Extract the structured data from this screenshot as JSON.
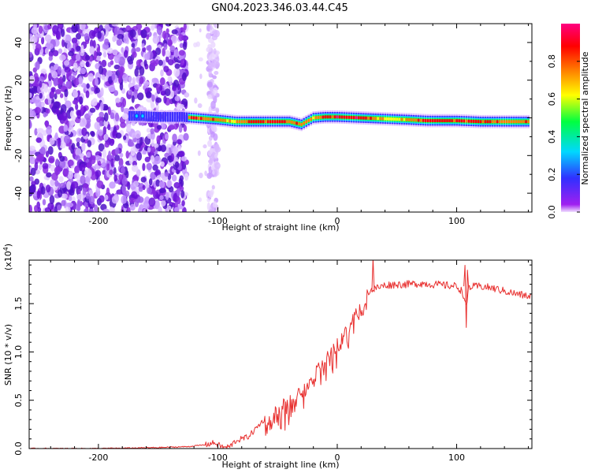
{
  "title": "GN04.2023.346.03.44.C45",
  "chart_data": [
    {
      "type": "heatmap",
      "xlabel": "Height of straight line (km)",
      "ylabel": "Frequency (Hz)",
      "xlim": [
        -258,
        163
      ],
      "ylim": [
        -50,
        50
      ],
      "xticks": [
        -200,
        -100,
        0,
        100
      ],
      "yticks": [
        -40,
        -20,
        0,
        20,
        40
      ],
      "colorbar": {
        "label": "Normalized spectral amplitude",
        "range": [
          0.0,
          1.0
        ],
        "ticks": [
          0.0,
          0.2,
          0.4,
          0.6,
          0.8
        ],
        "colors": [
          "#a020f0",
          "#3030ff",
          "#00d8ff",
          "#00ff40",
          "#ffff00",
          "#ff8000",
          "#ff0000",
          "#ff0080"
        ]
      },
      "ridge": [
        {
          "x": -175,
          "freq": 1.0,
          "amp": 0.15
        },
        {
          "x": -165,
          "freq": 1.0,
          "amp": 0.25
        },
        {
          "x": -150,
          "freq": 0.5,
          "amp": 0.2
        },
        {
          "x": -130,
          "freq": 0.5,
          "amp": 0.4
        },
        {
          "x": -120,
          "freq": 0.0,
          "amp": 0.85
        },
        {
          "x": -100,
          "freq": -1.0,
          "amp": 0.7
        },
        {
          "x": -85,
          "freq": -2.0,
          "amp": 0.7
        },
        {
          "x": -70,
          "freq": -2.0,
          "amp": 0.8
        },
        {
          "x": -55,
          "freq": -2.0,
          "amp": 0.85
        },
        {
          "x": -40,
          "freq": -2.0,
          "amp": 0.7
        },
        {
          "x": -30,
          "freq": -3.5,
          "amp": 0.75
        },
        {
          "x": -20,
          "freq": 0.0,
          "amp": 0.7
        },
        {
          "x": -10,
          "freq": 0.5,
          "amp": 0.75
        },
        {
          "x": 0,
          "freq": 0.5,
          "amp": 0.9
        },
        {
          "x": 20,
          "freq": 0.0,
          "amp": 0.9
        },
        {
          "x": 40,
          "freq": -0.5,
          "amp": 0.6
        },
        {
          "x": 60,
          "freq": -1.0,
          "amp": 0.7
        },
        {
          "x": 75,
          "freq": -1.5,
          "amp": 0.85
        },
        {
          "x": 100,
          "freq": -1.5,
          "amp": 0.85
        },
        {
          "x": 120,
          "freq": -2.0,
          "amp": 0.85
        },
        {
          "x": 140,
          "freq": -2.0,
          "amp": 0.7
        },
        {
          "x": 160,
          "freq": -2.0,
          "amp": 0.8
        }
      ]
    },
    {
      "type": "line",
      "xlabel": "Height of straight line (km)",
      "ylabel": "SNR (10 * v/v)",
      "y_multiplier": "(x10",
      "y_multiplier_exp": "4",
      "y_multiplier_close": ")",
      "xlim": [
        -258,
        163
      ],
      "ylim": [
        0,
        1.95
      ],
      "xticks": [
        -200,
        -100,
        0,
        100
      ],
      "yticks": [
        0.0,
        0.5,
        1.0,
        1.5
      ],
      "ytick_labels": [
        "0.0",
        "0.5",
        "1.0",
        "1.5"
      ],
      "grid": false,
      "color": "#e8302f",
      "series": [
        {
          "x": [
            -258,
            -200,
            -150,
            -125,
            -110,
            -103,
            -95,
            -90,
            -85,
            -80,
            -75,
            -70,
            -65,
            -60,
            -55,
            -50,
            -45,
            -40,
            -35,
            -30,
            -25,
            -20,
            -15,
            -10,
            -5,
            0,
            5,
            10,
            15,
            20,
            25,
            30,
            40,
            50,
            60,
            70,
            80,
            90,
            100,
            105,
            108,
            110,
            120,
            130,
            140,
            150,
            163
          ],
          "y": [
            0.0,
            0.0,
            0.01,
            0.02,
            0.04,
            0.06,
            0.01,
            0.02,
            0.08,
            0.1,
            0.12,
            0.18,
            0.25,
            0.32,
            0.42,
            0.45,
            0.52,
            0.55,
            0.62,
            0.68,
            0.76,
            0.82,
            0.9,
            0.98,
            1.07,
            1.15,
            1.25,
            1.33,
            1.45,
            1.55,
            1.62,
            1.65,
            1.69,
            1.7,
            1.7,
            1.71,
            1.7,
            1.69,
            1.68,
            1.62,
            1.45,
            1.67,
            1.68,
            1.66,
            1.63,
            1.6,
            1.57
          ]
        }
      ]
    }
  ]
}
